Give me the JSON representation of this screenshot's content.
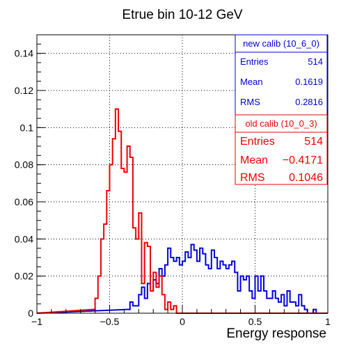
{
  "chart_data": {
    "type": "histogram",
    "title": "Etrue bin 10-12 GeV",
    "xlabel": "Energy response",
    "ylabel": "",
    "xlim": [
      -1,
      1
    ],
    "ylim": [
      0,
      0.15
    ],
    "grid": true,
    "bin_width": 0.02,
    "x_ticks": [
      {
        "value": -1,
        "label": "−1"
      },
      {
        "value": -0.5,
        "label": "−0.5"
      },
      {
        "value": 0,
        "label": "0"
      },
      {
        "value": 0.5,
        "label": "0.5"
      },
      {
        "value": 1,
        "label": "1"
      }
    ],
    "y_ticks": [
      {
        "value": 0,
        "label": "0"
      },
      {
        "value": 0.02,
        "label": "0.02"
      },
      {
        "value": 0.04,
        "label": "0.04"
      },
      {
        "value": 0.06,
        "label": "0.06"
      },
      {
        "value": 0.08,
        "label": "0.08"
      },
      {
        "value": 0.1,
        "label": "0.1"
      },
      {
        "value": 0.12,
        "label": "0.12"
      },
      {
        "value": 0.14,
        "label": "0.14"
      }
    ],
    "series": [
      {
        "name": "new calib (10_6_0)",
        "color": "#0000dd",
        "stats": [
          {
            "label": "Entries",
            "value": "514"
          },
          {
            "label": "Mean",
            "value": "0.1619"
          },
          {
            "label": "RMS",
            "value": "0.2816"
          }
        ],
        "bins": [
          [
            -0.38,
            0.002
          ],
          [
            -0.36,
            0.006
          ],
          [
            -0.34,
            0.004
          ],
          [
            -0.32,
            0.004
          ],
          [
            -0.3,
            0.01
          ],
          [
            -0.28,
            0.014
          ],
          [
            -0.26,
            0.008
          ],
          [
            -0.24,
            0.016
          ],
          [
            -0.22,
            0.012
          ],
          [
            -0.2,
            0.018
          ],
          [
            -0.18,
            0.016
          ],
          [
            -0.16,
            0.024
          ],
          [
            -0.14,
            0.02
          ],
          [
            -0.12,
            0.026
          ],
          [
            -0.1,
            0.035
          ],
          [
            -0.08,
            0.03
          ],
          [
            -0.06,
            0.028
          ],
          [
            -0.04,
            0.03
          ],
          [
            -0.02,
            0.026
          ],
          [
            0.0,
            0.028
          ],
          [
            0.02,
            0.033
          ],
          [
            0.04,
            0.03
          ],
          [
            0.06,
            0.037
          ],
          [
            0.08,
            0.034
          ],
          [
            0.1,
            0.028
          ],
          [
            0.12,
            0.035
          ],
          [
            0.14,
            0.032
          ],
          [
            0.16,
            0.026
          ],
          [
            0.18,
            0.024
          ],
          [
            0.2,
            0.034
          ],
          [
            0.22,
            0.03
          ],
          [
            0.24,
            0.024
          ],
          [
            0.26,
            0.028
          ],
          [
            0.28,
            0.026
          ],
          [
            0.3,
            0.024
          ],
          [
            0.32,
            0.026
          ],
          [
            0.34,
            0.028
          ],
          [
            0.36,
            0.022
          ],
          [
            0.38,
            0.012
          ],
          [
            0.4,
            0.02
          ],
          [
            0.42,
            0.018
          ],
          [
            0.44,
            0.02
          ],
          [
            0.46,
            0.012
          ],
          [
            0.48,
            0.008
          ],
          [
            0.5,
            0.02
          ],
          [
            0.52,
            0.012
          ],
          [
            0.54,
            0.02
          ],
          [
            0.56,
            0.012
          ],
          [
            0.58,
            0.008
          ],
          [
            0.6,
            0.008
          ],
          [
            0.62,
            0.012
          ],
          [
            0.64,
            0.008
          ],
          [
            0.66,
            0.006
          ],
          [
            0.68,
            0.01
          ],
          [
            0.7,
            0.004
          ],
          [
            0.72,
            0.012
          ],
          [
            0.74,
            0.006
          ],
          [
            0.76,
            0.006
          ],
          [
            0.78,
            0.004
          ],
          [
            0.8,
            0.01
          ],
          [
            0.82,
            0.004
          ],
          [
            0.84,
            0.002
          ],
          [
            0.86,
            0.0
          ],
          [
            0.88,
            0.0
          ],
          [
            0.9,
            0.002
          ]
        ]
      },
      {
        "name": "old calib (10_0_3)",
        "color": "#ee0000",
        "stats": [
          {
            "label": "Entries",
            "value": "514"
          },
          {
            "label": "Mean",
            "value": "−0.4171"
          },
          {
            "label": "RMS",
            "value": "0.1046"
          }
        ],
        "bins": [
          [
            -0.62,
            0.002
          ],
          [
            -0.6,
            0.008
          ],
          [
            -0.58,
            0.02
          ],
          [
            -0.56,
            0.04
          ],
          [
            -0.54,
            0.048
          ],
          [
            -0.52,
            0.066
          ],
          [
            -0.5,
            0.08
          ],
          [
            -0.48,
            0.094
          ],
          [
            -0.46,
            0.11
          ],
          [
            -0.44,
            0.098
          ],
          [
            -0.42,
            0.078
          ],
          [
            -0.4,
            0.076
          ],
          [
            -0.38,
            0.09
          ],
          [
            -0.36,
            0.084
          ],
          [
            -0.34,
            0.046
          ],
          [
            -0.32,
            0.04
          ],
          [
            -0.3,
            0.054
          ],
          [
            -0.28,
            0.016
          ],
          [
            -0.26,
            0.038
          ],
          [
            -0.24,
            0.036
          ],
          [
            -0.22,
            0.012
          ],
          [
            -0.2,
            0.022
          ],
          [
            -0.18,
            0.014
          ],
          [
            -0.16,
            0.02
          ],
          [
            -0.14,
            0.01
          ],
          [
            -0.12,
            0.002
          ],
          [
            -0.1,
            0.006
          ],
          [
            -0.08,
            0.002
          ],
          [
            -0.06,
            0.004
          ]
        ]
      }
    ]
  }
}
